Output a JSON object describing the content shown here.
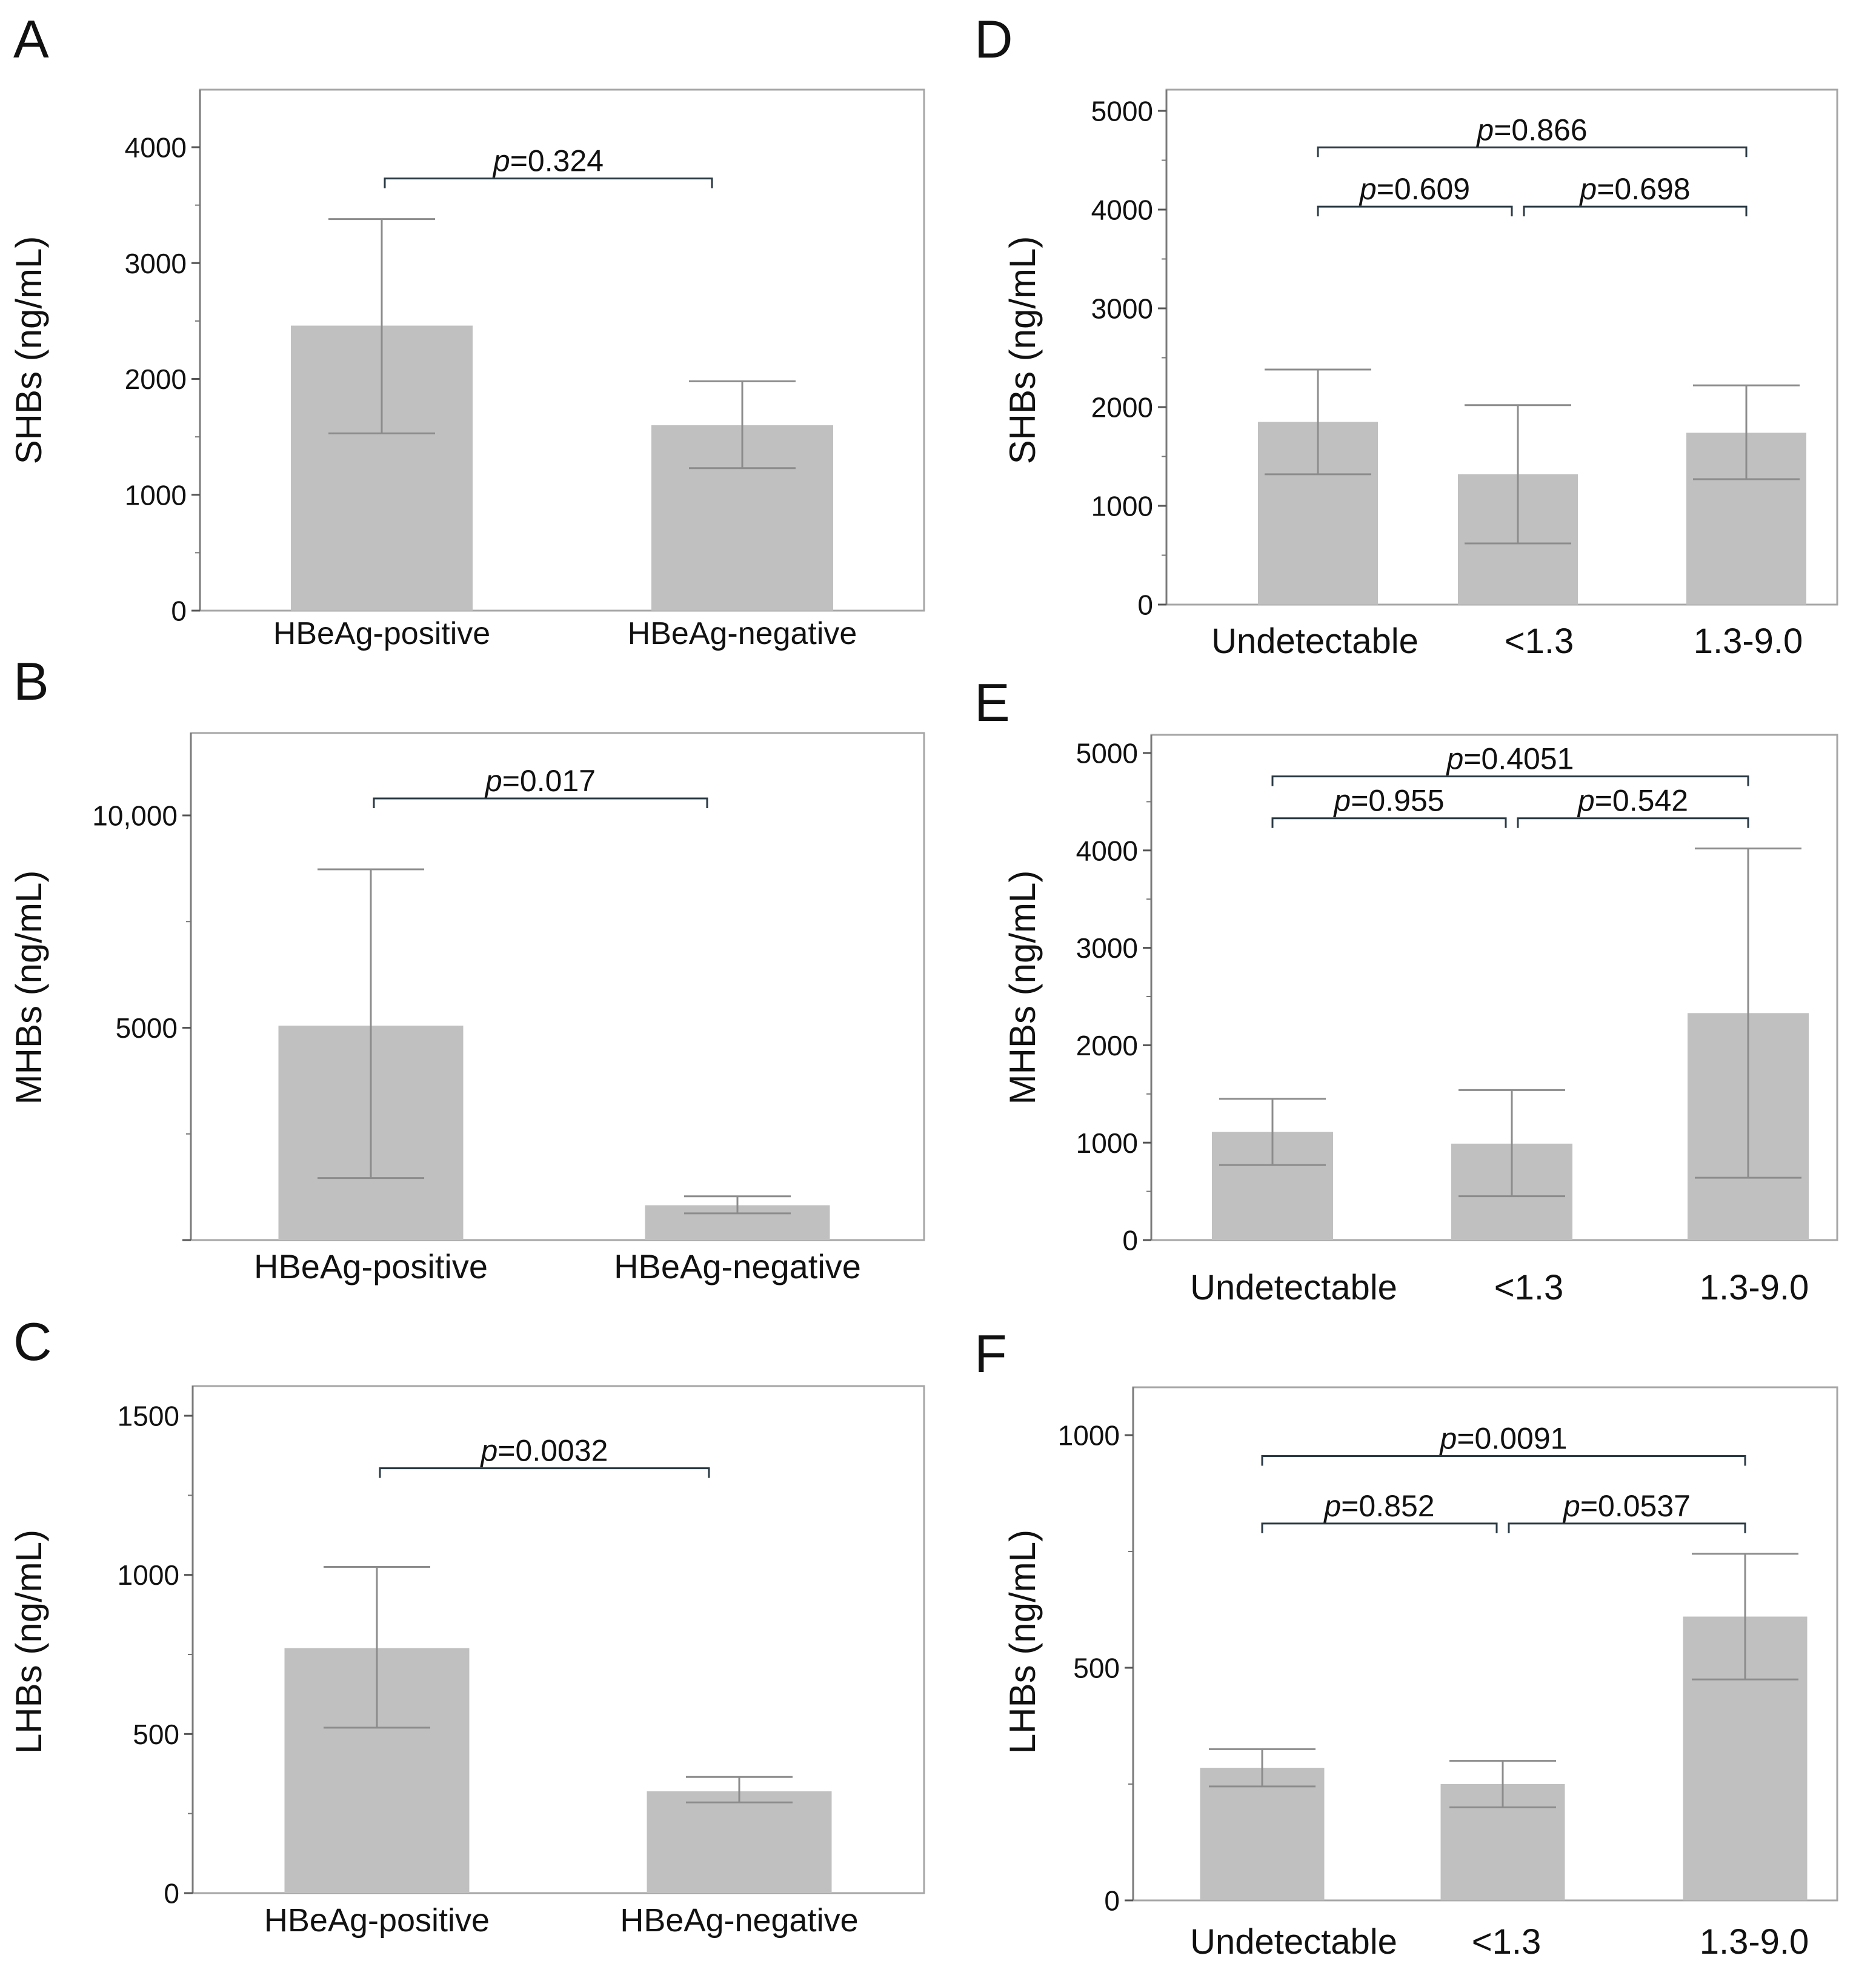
{
  "figure": {
    "bar_color": "#c0c0c0",
    "errorbar_color": "#8c8c8c",
    "frame_color": "#a6a6a6",
    "bracket_color": "#2a3a44",
    "text_color": "#111111"
  },
  "chart_data": [
    {
      "panel_letter": "A",
      "type": "bar",
      "ylabel": "SHBs (ng/mL)",
      "categories": [
        "HBeAg-positive",
        "HBeAg-negative"
      ],
      "values": [
        2460,
        1600
      ],
      "error_low": [
        1530,
        1230
      ],
      "error_high": [
        3380,
        1980
      ],
      "ylim": [
        0,
        4600
      ],
      "yticks": [
        0,
        1000,
        2000,
        3000,
        4000
      ],
      "ytick_labels": [
        "0",
        "1000",
        "2000",
        "3000",
        "4000"
      ],
      "minor_ticks": [
        500,
        1500,
        2500,
        3500,
        4500
      ],
      "comparisons": [
        {
          "from": 0,
          "to": 1,
          "p_prefix": "p",
          "p_value": "=0.324",
          "y": 3730
        }
      ]
    },
    {
      "panel_letter": "D",
      "type": "bar",
      "ylabel": "SHBs (ng/mL)",
      "categories": [
        "Undetectable",
        "<1.3",
        "1.3-9.0"
      ],
      "values": [
        1850,
        1320,
        1740
      ],
      "error_low": [
        1320,
        620,
        1270
      ],
      "error_high": [
        2380,
        2020,
        2220
      ],
      "ylim": [
        0,
        5200
      ],
      "yticks": [
        0,
        1000,
        2000,
        3000,
        4000,
        5000
      ],
      "ytick_labels": [
        "0",
        "1000",
        "2000",
        "3000",
        "4000",
        "5000"
      ],
      "minor_ticks": [
        500,
        1500,
        2500,
        3500,
        4500
      ],
      "comparisons": [
        {
          "from": 0,
          "to": 2,
          "p_prefix": "p",
          "p_value": "=0.866",
          "y": 4630
        },
        {
          "from": 0,
          "to": 1,
          "p_prefix": "p",
          "p_value": "=0.609",
          "y": 4030
        },
        {
          "from": 1,
          "to": 2,
          "p_prefix": "p",
          "p_value": "=0.698",
          "y": 4030
        }
      ]
    },
    {
      "panel_letter": "B",
      "type": "bar",
      "ylabel": "MHBs (ng/mL)",
      "categories": [
        "HBeAg-positive",
        "HBeAg-negative"
      ],
      "values": [
        5050,
        820
      ],
      "error_low": [
        1460,
        630
      ],
      "error_high": [
        8730,
        1030
      ],
      "ylim": [
        0,
        12000
      ],
      "yticks": [
        0,
        5000,
        10000
      ],
      "ytick_labels": [
        "",
        "5000",
        "10,000"
      ],
      "minor_ticks": [
        2500,
        7500
      ],
      "comparisons": [
        {
          "from": 0,
          "to": 1,
          "p_prefix": "p",
          "p_value": "=0.017",
          "y": 10400
        }
      ]
    },
    {
      "panel_letter": "E",
      "type": "bar",
      "ylabel": "MHBs (ng/mL)",
      "categories": [
        "Undetectable",
        "<1.3",
        "1.3-9.0"
      ],
      "values": [
        1110,
        990,
        2330
      ],
      "error_low": [
        770,
        450,
        640
      ],
      "error_high": [
        1450,
        1540,
        4020
      ],
      "ylim": [
        0,
        5200
      ],
      "yticks": [
        0,
        1000,
        2000,
        3000,
        4000,
        5000
      ],
      "ytick_labels": [
        "0",
        "1000",
        "2000",
        "3000",
        "4000",
        "5000"
      ],
      "minor_ticks": [
        500,
        1500,
        2500,
        3500,
        4500
      ],
      "comparisons": [
        {
          "from": 0,
          "to": 2,
          "p_prefix": "p",
          "p_value": "=0.4051",
          "y": 4760
        },
        {
          "from": 0,
          "to": 1,
          "p_prefix": "p",
          "p_value": "=0.955",
          "y": 4330
        },
        {
          "from": 1,
          "to": 2,
          "p_prefix": "p",
          "p_value": "=0.542",
          "y": 4330
        }
      ]
    },
    {
      "panel_letter": "C",
      "type": "bar",
      "ylabel": "LHBs (ng/mL)",
      "categories": [
        "HBeAg-positive",
        "HBeAg-negative"
      ],
      "values": [
        770,
        320
      ],
      "error_low": [
        520,
        285
      ],
      "error_high": [
        1025,
        365
      ],
      "ylim": [
        0,
        1600
      ],
      "yticks": [
        0,
        500,
        1000,
        1500
      ],
      "ytick_labels": [
        "0",
        "500",
        "1000",
        "1500"
      ],
      "minor_ticks": [
        250,
        750,
        1250
      ],
      "comparisons": [
        {
          "from": 0,
          "to": 1,
          "p_prefix": "p",
          "p_value": "=0.0032",
          "y": 1335
        }
      ]
    },
    {
      "panel_letter": "F",
      "type": "bar",
      "ylabel": "LHBs (ng/mL)",
      "categories": [
        "Undetectable",
        "<1.3",
        "1.3-9.0"
      ],
      "values": [
        285,
        250,
        610
      ],
      "error_low": [
        245,
        200,
        475
      ],
      "error_high": [
        325,
        300,
        745
      ],
      "ylim": [
        0,
        1100
      ],
      "yticks": [
        0,
        500,
        1000
      ],
      "ytick_labels": [
        "0",
        "500",
        "1000"
      ],
      "minor_ticks": [
        250,
        750
      ],
      "comparisons": [
        {
          "from": 0,
          "to": 2,
          "p_prefix": "p",
          "p_value": "=0.0091",
          "y": 955
        },
        {
          "from": 0,
          "to": 1,
          "p_prefix": "p",
          "p_value": "=0.852",
          "y": 810
        },
        {
          "from": 1,
          "to": 2,
          "p_prefix": "p",
          "p_value": "=0.0537",
          "y": 810
        }
      ]
    }
  ]
}
